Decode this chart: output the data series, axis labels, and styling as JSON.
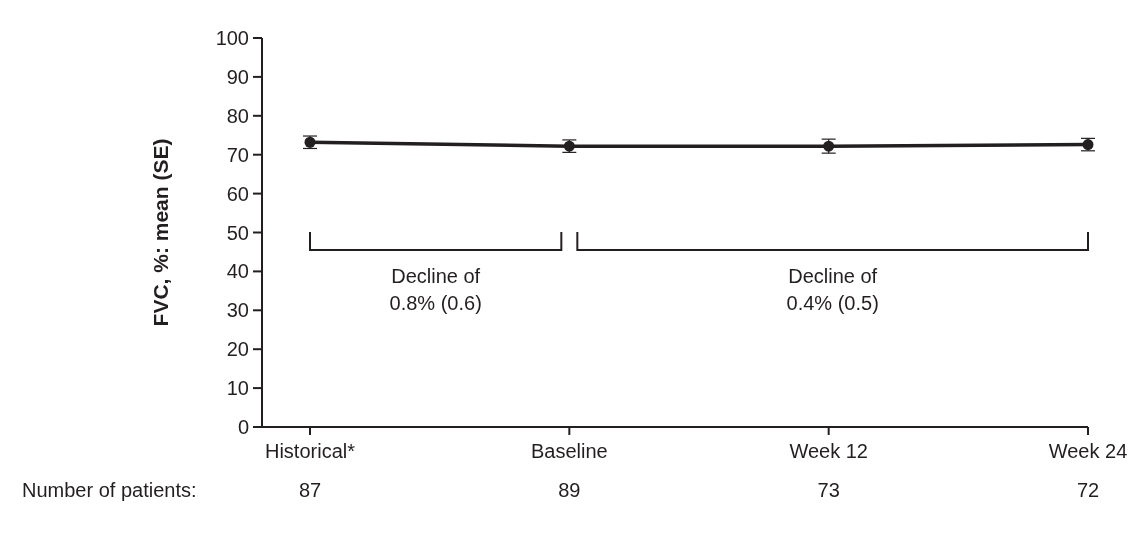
{
  "chart_data": {
    "type": "line",
    "ylabel": "FVC, %: mean (SE)",
    "categories": [
      "Historical*",
      "Baseline",
      "Week 12",
      "Week 24"
    ],
    "series": [
      {
        "color": "#231f20",
        "values": [
          73.2,
          72.2,
          72.2,
          72.6
        ],
        "errors": [
          1.6,
          1.6,
          1.8,
          1.6
        ]
      }
    ],
    "ylim": [
      0,
      100
    ],
    "yticks": [
      0,
      10,
      20,
      30,
      40,
      50,
      60,
      70,
      80,
      90,
      100
    ],
    "marker": "circle",
    "line_style": "solid",
    "annotations": [
      "Decline of\n0.8% (0.6)",
      "Decline of\n0.4% (0.5)",
      "Number of patients:",
      "87",
      "89",
      "73",
      "72"
    ]
  }
}
